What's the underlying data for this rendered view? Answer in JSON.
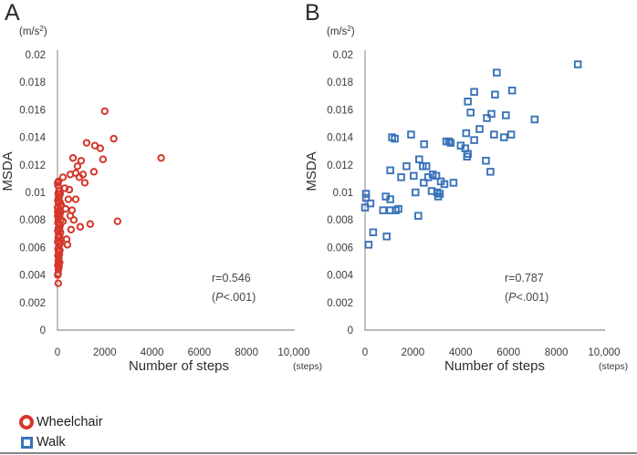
{
  "figure": {
    "panels": [
      {
        "label": "A",
        "y_unit_prefix": "(m/s",
        "y_unit_sup": "2",
        "y_unit_suffix": ")",
        "ylabel": "MSDA",
        "xlabel": "Number of steps",
        "x_unit": "(steps)",
        "r_text": "r=0.546",
        "p_prefix": "(",
        "p_var": "P",
        "p_suffix": "<.001)"
      },
      {
        "label": "B",
        "y_unit_prefix": "(m/s",
        "y_unit_sup": "2",
        "y_unit_suffix": ")",
        "ylabel": "MSDA",
        "xlabel": "Number of steps",
        "x_unit": "(steps)",
        "r_text": "r=0.787",
        "p_prefix": "(",
        "p_var": "P",
        "p_suffix": "<.001)"
      }
    ],
    "legend": {
      "items": [
        {
          "label": "Wheelchair",
          "marker": "open-circle",
          "color": "#d6372b"
        },
        {
          "label": "Walk",
          "marker": "open-square",
          "color": "#3a73b9"
        }
      ]
    }
  },
  "chart_data": [
    {
      "type": "scatter",
      "panel": "A",
      "series": "Wheelchair",
      "marker": "circle",
      "color": "#d6372b",
      "title": "",
      "xlabel": "Number of steps (steps)",
      "ylabel": "MSDA (m/s2)",
      "xlim": [
        0,
        10000
      ],
      "ylim": [
        0,
        0.02
      ],
      "grid": false,
      "annotation": {
        "r": "r=0.546",
        "p": "(P<.001)"
      },
      "x_ticks": [
        [
          0,
          "0"
        ],
        [
          2000,
          "2000"
        ],
        [
          4000,
          "4000"
        ],
        [
          6000,
          "6000"
        ],
        [
          8000,
          "8000"
        ],
        [
          10000,
          "10,000"
        ]
      ],
      "y_ticks": [
        [
          0,
          "0"
        ],
        [
          0.002,
          "0.002"
        ],
        [
          0.004,
          "0.004"
        ],
        [
          0.006,
          "0.006"
        ],
        [
          0.008,
          "0.008"
        ],
        [
          0.01,
          "0.01"
        ],
        [
          0.012,
          "0.012"
        ],
        [
          0.014,
          "0.014"
        ],
        [
          0.016,
          "0.016"
        ],
        [
          0.018,
          "0.018"
        ],
        [
          0.02,
          "0.02"
        ]
      ],
      "points": [
        [
          2000,
          0.0159
        ],
        [
          2380,
          0.0139
        ],
        [
          1230,
          0.0136
        ],
        [
          1580,
          0.0134
        ],
        [
          1810,
          0.0132
        ],
        [
          4385,
          0.0125
        ],
        [
          655,
          0.0125
        ],
        [
          1925,
          0.0124
        ],
        [
          1000,
          0.0123
        ],
        [
          845,
          0.0119
        ],
        [
          1540,
          0.0115
        ],
        [
          770,
          0.0114
        ],
        [
          1080,
          0.0113
        ],
        [
          540,
          0.0113
        ],
        [
          925,
          0.0111
        ],
        [
          230,
          0.0111
        ],
        [
          1155,
          0.0107
        ],
        [
          40,
          0.0108
        ],
        [
          10,
          0.0107
        ],
        [
          310,
          0.0103
        ],
        [
          500,
          0.0102
        ],
        [
          460,
          0.0095
        ],
        [
          770,
          0.0095
        ],
        [
          615,
          0.0087
        ],
        [
          345,
          0.0088
        ],
        [
          540,
          0.0083
        ],
        [
          690,
          0.008
        ],
        [
          2540,
          0.0079
        ],
        [
          230,
          0.0079
        ],
        [
          1385,
          0.0077
        ],
        [
          960,
          0.0075
        ],
        [
          575,
          0.0073
        ],
        [
          385,
          0.0066
        ],
        [
          420,
          0.0062
        ],
        [
          20,
          0.0105
        ],
        [
          60,
          0.0101
        ],
        [
          30,
          0.0099
        ],
        [
          115,
          0.0099
        ],
        [
          80,
          0.0097
        ],
        [
          40,
          0.0096
        ],
        [
          15,
          0.0094
        ],
        [
          100,
          0.0093
        ],
        [
          45,
          0.0092
        ],
        [
          155,
          0.0091
        ],
        [
          130,
          0.009
        ],
        [
          5,
          0.0089
        ],
        [
          25,
          0.0089
        ],
        [
          70,
          0.0087
        ],
        [
          10,
          0.0086
        ],
        [
          75,
          0.0085
        ],
        [
          120,
          0.0085
        ],
        [
          55,
          0.0084
        ],
        [
          10,
          0.0083
        ],
        [
          90,
          0.0082
        ],
        [
          35,
          0.0081
        ],
        [
          140,
          0.008
        ],
        [
          20,
          0.0078
        ],
        [
          65,
          0.0077
        ],
        [
          110,
          0.0076
        ],
        [
          40,
          0.0074
        ],
        [
          85,
          0.0073
        ],
        [
          15,
          0.0072
        ],
        [
          125,
          0.0071
        ],
        [
          50,
          0.0069
        ],
        [
          95,
          0.0068
        ],
        [
          30,
          0.0067
        ],
        [
          75,
          0.0065
        ],
        [
          10,
          0.0064
        ],
        [
          115,
          0.0063
        ],
        [
          60,
          0.0061
        ],
        [
          25,
          0.0059
        ],
        [
          100,
          0.0058
        ],
        [
          45,
          0.0057
        ],
        [
          80,
          0.0055
        ],
        [
          20,
          0.0054
        ],
        [
          55,
          0.0052
        ],
        [
          35,
          0.005
        ],
        [
          90,
          0.0049
        ],
        [
          15,
          0.0047
        ],
        [
          65,
          0.0046
        ],
        [
          40,
          0.0044
        ],
        [
          25,
          0.0041
        ],
        [
          10,
          0.004
        ],
        [
          30,
          0.0034
        ]
      ]
    },
    {
      "type": "scatter",
      "panel": "B",
      "series": "Walk",
      "marker": "square",
      "color": "#3a73b9",
      "title": "",
      "xlabel": "Number of steps (steps)",
      "ylabel": "MSDA (m/s2)",
      "xlim": [
        0,
        10000
      ],
      "ylim": [
        0,
        0.02
      ],
      "grid": false,
      "annotation": {
        "r": "r=0.787",
        "p": "(P<.001)"
      },
      "x_ticks": [
        [
          0,
          "0"
        ],
        [
          2000,
          "2000"
        ],
        [
          4000,
          "4000"
        ],
        [
          6000,
          "6000"
        ],
        [
          8000,
          "8000"
        ],
        [
          10000,
          "10,000"
        ]
      ],
      "y_ticks": [
        [
          0,
          "0"
        ],
        [
          0.002,
          "0.002"
        ],
        [
          0.004,
          "0.004"
        ],
        [
          0.006,
          "0.006"
        ],
        [
          0.008,
          "0.008"
        ],
        [
          0.01,
          "0.01"
        ],
        [
          0.012,
          "0.012"
        ],
        [
          0.014,
          "0.014"
        ],
        [
          0.016,
          "0.016"
        ],
        [
          0.018,
          "0.018"
        ],
        [
          0.02,
          "0.02"
        ]
      ],
      "points": [
        [
          8900,
          0.0193
        ],
        [
          5510,
          0.0187
        ],
        [
          6150,
          0.0174
        ],
        [
          4565,
          0.0173
        ],
        [
          5435,
          0.0171
        ],
        [
          4300,
          0.0166
        ],
        [
          4415,
          0.0158
        ],
        [
          5285,
          0.0157
        ],
        [
          5890,
          0.0156
        ],
        [
          5095,
          0.0154
        ],
        [
          7095,
          0.0153
        ],
        [
          4790,
          0.0146
        ],
        [
          4230,
          0.0143
        ],
        [
          5395,
          0.0142
        ],
        [
          6113,
          0.0142
        ],
        [
          1925,
          0.0142
        ],
        [
          5810,
          0.014
        ],
        [
          1130,
          0.014
        ],
        [
          1245,
          0.0139
        ],
        [
          4565,
          0.0138
        ],
        [
          3400,
          0.0137
        ],
        [
          3510,
          0.0137
        ],
        [
          3585,
          0.0136
        ],
        [
          2470,
          0.0135
        ],
        [
          4000,
          0.0134
        ],
        [
          4190,
          0.0132
        ],
        [
          4300,
          0.0128
        ],
        [
          4265,
          0.0126
        ],
        [
          2265,
          0.0124
        ],
        [
          5055,
          0.0123
        ],
        [
          1735,
          0.0119
        ],
        [
          2415,
          0.0119
        ],
        [
          2565,
          0.0119
        ],
        [
          1055,
          0.0116
        ],
        [
          5245,
          0.0115
        ],
        [
          2830,
          0.0113
        ],
        [
          2035,
          0.0112
        ],
        [
          2980,
          0.0112
        ],
        [
          1510,
          0.0111
        ],
        [
          2640,
          0.0111
        ],
        [
          3170,
          0.0108
        ],
        [
          2455,
          0.0107
        ],
        [
          3700,
          0.0107
        ],
        [
          3320,
          0.0106
        ],
        [
          2790,
          0.0101
        ],
        [
          2110,
          0.01
        ],
        [
          3020,
          0.01
        ],
        [
          3130,
          0.0099
        ],
        [
          40,
          0.0099
        ],
        [
          3060,
          0.0097
        ],
        [
          865,
          0.0097
        ],
        [
          40,
          0.0096
        ],
        [
          1055,
          0.0095
        ],
        [
          225,
          0.0092
        ],
        [
          0,
          0.0089
        ],
        [
          1395,
          0.0088
        ],
        [
          755,
          0.0087
        ],
        [
          1055,
          0.0087
        ],
        [
          1285,
          0.0087
        ],
        [
          2225,
          0.0083
        ],
        [
          340,
          0.0071
        ],
        [
          905,
          0.0068
        ],
        [
          150,
          0.0062
        ]
      ]
    }
  ]
}
